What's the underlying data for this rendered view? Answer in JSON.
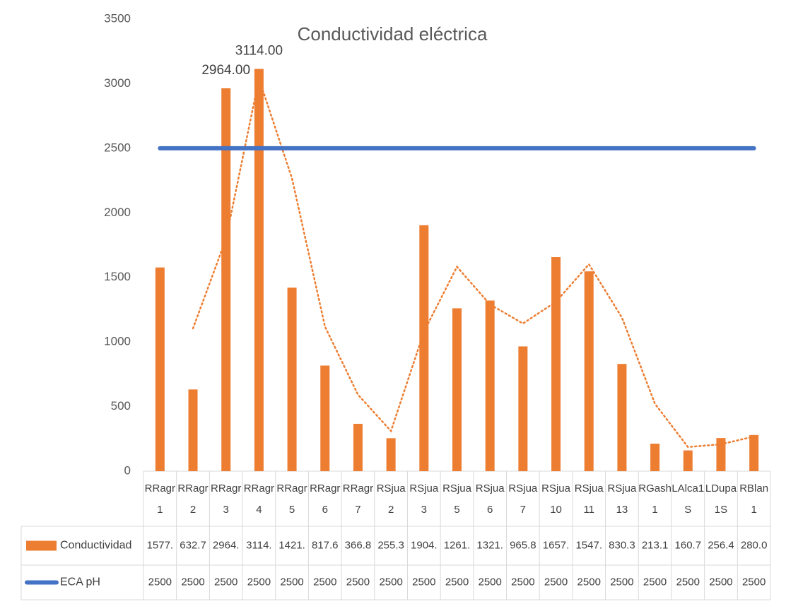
{
  "chart_data": {
    "type": "bar",
    "title": "Conductividad eléctrica",
    "categories": [
      "RRagr1",
      "RRagr2",
      "RRagr3",
      "RRagr4",
      "RRagr5",
      "RRagr6",
      "RRagr7",
      "RSjua2",
      "RSjua3",
      "RSjua5",
      "RSjua6",
      "RSjua7",
      "RSjua10",
      "RSjua11",
      "RSjua13",
      "RGash1",
      "LAlca1S",
      "LDupa1S",
      "RBlan1"
    ],
    "series": [
      {
        "name": "Conductividad",
        "type": "bar",
        "color": "#ed7d31",
        "values": [
          1577,
          632.7,
          2964,
          3114,
          1421,
          817.6,
          366.8,
          255.3,
          1904,
          1261,
          1321,
          965.8,
          1657,
          1547,
          830.3,
          213.1,
          160.7,
          256.4,
          280.0
        ],
        "value_labels": [
          "1577.",
          "632.7",
          "2964.",
          "3114.",
          "1421.",
          "817.6",
          "366.8",
          "255.3",
          "1904.",
          "1261.",
          "1321.",
          "965.8",
          "1657.",
          "1547.",
          "830.3",
          "213.1",
          "160.7",
          "256.4",
          "280.0"
        ],
        "point_labels": [
          null,
          null,
          "2964.00",
          "3114.00",
          null,
          null,
          null,
          null,
          null,
          null,
          null,
          null,
          null,
          null,
          null,
          null,
          null,
          null,
          null
        ]
      },
      {
        "name": "ECA pH",
        "type": "line",
        "color": "#4472c4",
        "values": [
          2500,
          2500,
          2500,
          2500,
          2500,
          2500,
          2500,
          2500,
          2500,
          2500,
          2500,
          2500,
          2500,
          2500,
          2500,
          2500,
          2500,
          2500,
          2500
        ]
      }
    ],
    "trendline": {
      "type": "moving_average",
      "period": 2,
      "color": "#ed7d31"
    },
    "ylim": [
      0,
      3500
    ],
    "yticks": [
      0,
      500,
      1000,
      1500,
      2000,
      2500,
      3000,
      3500
    ],
    "grid": false,
    "data_table": true
  }
}
